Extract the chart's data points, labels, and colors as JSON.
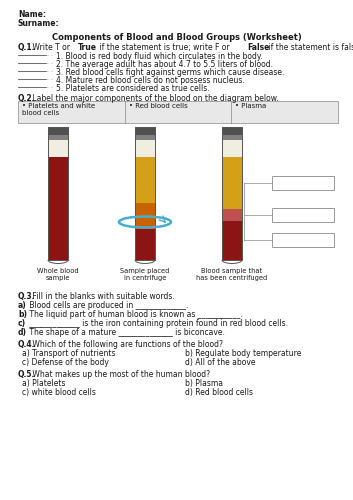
{
  "title": "Components of Blood and Blood Groups (Worksheet)",
  "name_label": "Name:",
  "surname_label": "Surname:",
  "q1_items": [
    "1. Blood is red body fluid which circulates in the body.",
    "2. The average adult has about 4.7 to 5.5 liters of blood.",
    "3. Red blood cells fight against germs which cause disease.",
    "4. Mature red blood cells do not possess nucleus.",
    "5. Platelets are considered as true cells."
  ],
  "q2_labels": [
    "Platelets and white\nblood cells",
    "Red blood cells",
    "Plasma"
  ],
  "tube1_label": "Whole blood\nsample",
  "tube2_label": "Sample placed\nin centrifuge",
  "tube3_label": "Blood sample that\nhas been centrifuged",
  "q3_a": "a) Blood cells are produced in _____________.",
  "q3_b": "b) The liquid part of human blood is known as ___________.",
  "q3_c": "c) _____________ is the iron containing protein found in red blood cells.",
  "q3_d": "d) The shape of a mature ______________ is biconcave.",
  "q4_a": "a) Transport of nutrients",
  "q4_b": "b) Regulate body temperature",
  "q4_c": "c) Defense of the body",
  "q4_d": "d) All of the above",
  "q5_a": "a) Platelets",
  "q5_b": "b) Plasma",
  "q5_c": "c) white blood cells",
  "q5_d": "d) Red blood cells",
  "bg_color": "#ffffff",
  "dark_red": "#8B1515",
  "yellow_blood": "#D4A017",
  "orange_blood": "#C86400",
  "pink_blood": "#C05050",
  "cap_color": "#606060",
  "tube_gray": "#B0B0B0",
  "tube_white": "#F8F8F0",
  "ring_color": "#4AADCC",
  "box_stroke": "#888888"
}
